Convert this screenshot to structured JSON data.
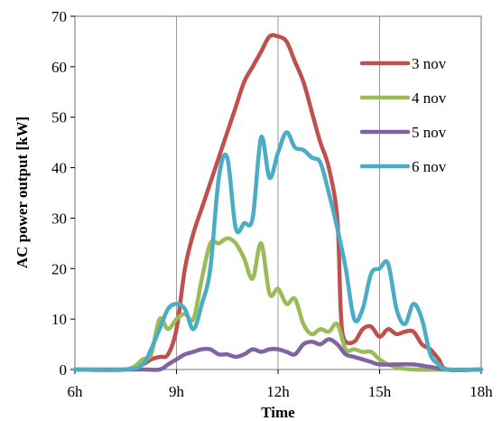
{
  "chart_data": {
    "type": "line",
    "xlabel": "Time",
    "ylabel": "AC power output [kW]",
    "xlim": [
      6,
      18
    ],
    "ylim": [
      0,
      70
    ],
    "x_ticks": [
      {
        "value": 6,
        "label": "6h"
      },
      {
        "value": 9,
        "label": "9h"
      },
      {
        "value": 12,
        "label": "12h"
      },
      {
        "value": 15,
        "label": "15h"
      },
      {
        "value": 18,
        "label": "18h"
      }
    ],
    "y_ticks": [
      0,
      10,
      20,
      30,
      40,
      50,
      60,
      70
    ],
    "grid": {
      "x": true,
      "y": false
    },
    "legend_position": "right",
    "series": [
      {
        "name": "3 nov",
        "color": "#c0504d",
        "points": [
          [
            6,
            0
          ],
          [
            7.5,
            0
          ],
          [
            8,
            1
          ],
          [
            8.25,
            2
          ],
          [
            8.5,
            2.5
          ],
          [
            8.75,
            3
          ],
          [
            9,
            8
          ],
          [
            9.25,
            20
          ],
          [
            9.5,
            27
          ],
          [
            9.75,
            32
          ],
          [
            10,
            37
          ],
          [
            10.25,
            42
          ],
          [
            10.5,
            47
          ],
          [
            10.75,
            52
          ],
          [
            11,
            57
          ],
          [
            11.25,
            60
          ],
          [
            11.5,
            63
          ],
          [
            11.75,
            66
          ],
          [
            12,
            66
          ],
          [
            12.25,
            65
          ],
          [
            12.5,
            61
          ],
          [
            12.75,
            57
          ],
          [
            13,
            51
          ],
          [
            13.25,
            45
          ],
          [
            13.5,
            40
          ],
          [
            13.75,
            30
          ],
          [
            13.85,
            12
          ],
          [
            13.95,
            6
          ],
          [
            14.25,
            5.5
          ],
          [
            14.5,
            8
          ],
          [
            14.75,
            8.5
          ],
          [
            15,
            6.5
          ],
          [
            15.25,
            8
          ],
          [
            15.5,
            7
          ],
          [
            15.75,
            7.5
          ],
          [
            16,
            7.5
          ],
          [
            16.25,
            5
          ],
          [
            16.5,
            4
          ],
          [
            16.75,
            2
          ],
          [
            17,
            0
          ],
          [
            18,
            0
          ]
        ]
      },
      {
        "name": "4 nov",
        "color": "#9bbb59",
        "points": [
          [
            6,
            0
          ],
          [
            7.5,
            0
          ],
          [
            8,
            2
          ],
          [
            8.25,
            3
          ],
          [
            8.5,
            10
          ],
          [
            8.75,
            8
          ],
          [
            9,
            10
          ],
          [
            9.25,
            11
          ],
          [
            9.5,
            10
          ],
          [
            9.75,
            18
          ],
          [
            10,
            25
          ],
          [
            10.25,
            25
          ],
          [
            10.5,
            26
          ],
          [
            10.75,
            25
          ],
          [
            11,
            22
          ],
          [
            11.25,
            18
          ],
          [
            11.5,
            25
          ],
          [
            11.75,
            15
          ],
          [
            12,
            16
          ],
          [
            12.25,
            13
          ],
          [
            12.5,
            14
          ],
          [
            12.75,
            9
          ],
          [
            13,
            7
          ],
          [
            13.25,
            8
          ],
          [
            13.5,
            7.5
          ],
          [
            13.75,
            9
          ],
          [
            14,
            4
          ],
          [
            14.25,
            4
          ],
          [
            14.5,
            3.5
          ],
          [
            14.75,
            3.5
          ],
          [
            15,
            2
          ],
          [
            15.25,
            1
          ],
          [
            15.5,
            0.5
          ],
          [
            16,
            0
          ],
          [
            18,
            0
          ]
        ]
      },
      {
        "name": "5 nov",
        "color": "#8064a2",
        "points": [
          [
            6,
            0
          ],
          [
            8,
            0
          ],
          [
            8.5,
            0
          ],
          [
            8.75,
            1
          ],
          [
            9,
            2
          ],
          [
            9.25,
            3
          ],
          [
            9.5,
            3.5
          ],
          [
            9.75,
            4
          ],
          [
            10,
            4
          ],
          [
            10.25,
            3
          ],
          [
            10.5,
            3
          ],
          [
            10.75,
            2.5
          ],
          [
            11,
            3
          ],
          [
            11.25,
            4
          ],
          [
            11.5,
            3.5
          ],
          [
            11.75,
            4
          ],
          [
            12,
            4
          ],
          [
            12.25,
            3.5
          ],
          [
            12.5,
            3
          ],
          [
            12.75,
            5
          ],
          [
            13,
            5.5
          ],
          [
            13.25,
            5
          ],
          [
            13.5,
            6
          ],
          [
            13.75,
            5
          ],
          [
            14,
            3
          ],
          [
            14.25,
            2.5
          ],
          [
            14.5,
            2
          ],
          [
            14.75,
            1.5
          ],
          [
            15,
            1
          ],
          [
            15.5,
            1
          ],
          [
            16,
            1
          ],
          [
            16.5,
            0.5
          ],
          [
            17,
            0
          ],
          [
            18,
            0
          ]
        ]
      },
      {
        "name": "6 nov",
        "color": "#4bacc6",
        "points": [
          [
            6,
            0
          ],
          [
            7.5,
            0
          ],
          [
            8,
            1
          ],
          [
            8.25,
            4
          ],
          [
            8.5,
            8
          ],
          [
            8.75,
            12
          ],
          [
            9,
            13
          ],
          [
            9.25,
            12
          ],
          [
            9.5,
            8
          ],
          [
            9.75,
            13
          ],
          [
            10,
            20
          ],
          [
            10.25,
            38
          ],
          [
            10.5,
            42
          ],
          [
            10.75,
            28
          ],
          [
            11,
            29
          ],
          [
            11.25,
            30
          ],
          [
            11.5,
            46
          ],
          [
            11.75,
            38
          ],
          [
            12,
            43
          ],
          [
            12.25,
            47
          ],
          [
            12.5,
            44
          ],
          [
            12.75,
            43.5
          ],
          [
            13,
            42
          ],
          [
            13.25,
            41
          ],
          [
            13.5,
            35
          ],
          [
            13.75,
            28
          ],
          [
            14,
            20
          ],
          [
            14.25,
            10
          ],
          [
            14.5,
            12
          ],
          [
            14.75,
            19
          ],
          [
            15,
            20
          ],
          [
            15.25,
            21
          ],
          [
            15.5,
            12
          ],
          [
            15.75,
            9
          ],
          [
            16,
            13
          ],
          [
            16.25,
            10
          ],
          [
            16.5,
            3
          ],
          [
            16.75,
            1
          ],
          [
            17,
            0
          ],
          [
            18,
            0
          ]
        ]
      }
    ]
  }
}
